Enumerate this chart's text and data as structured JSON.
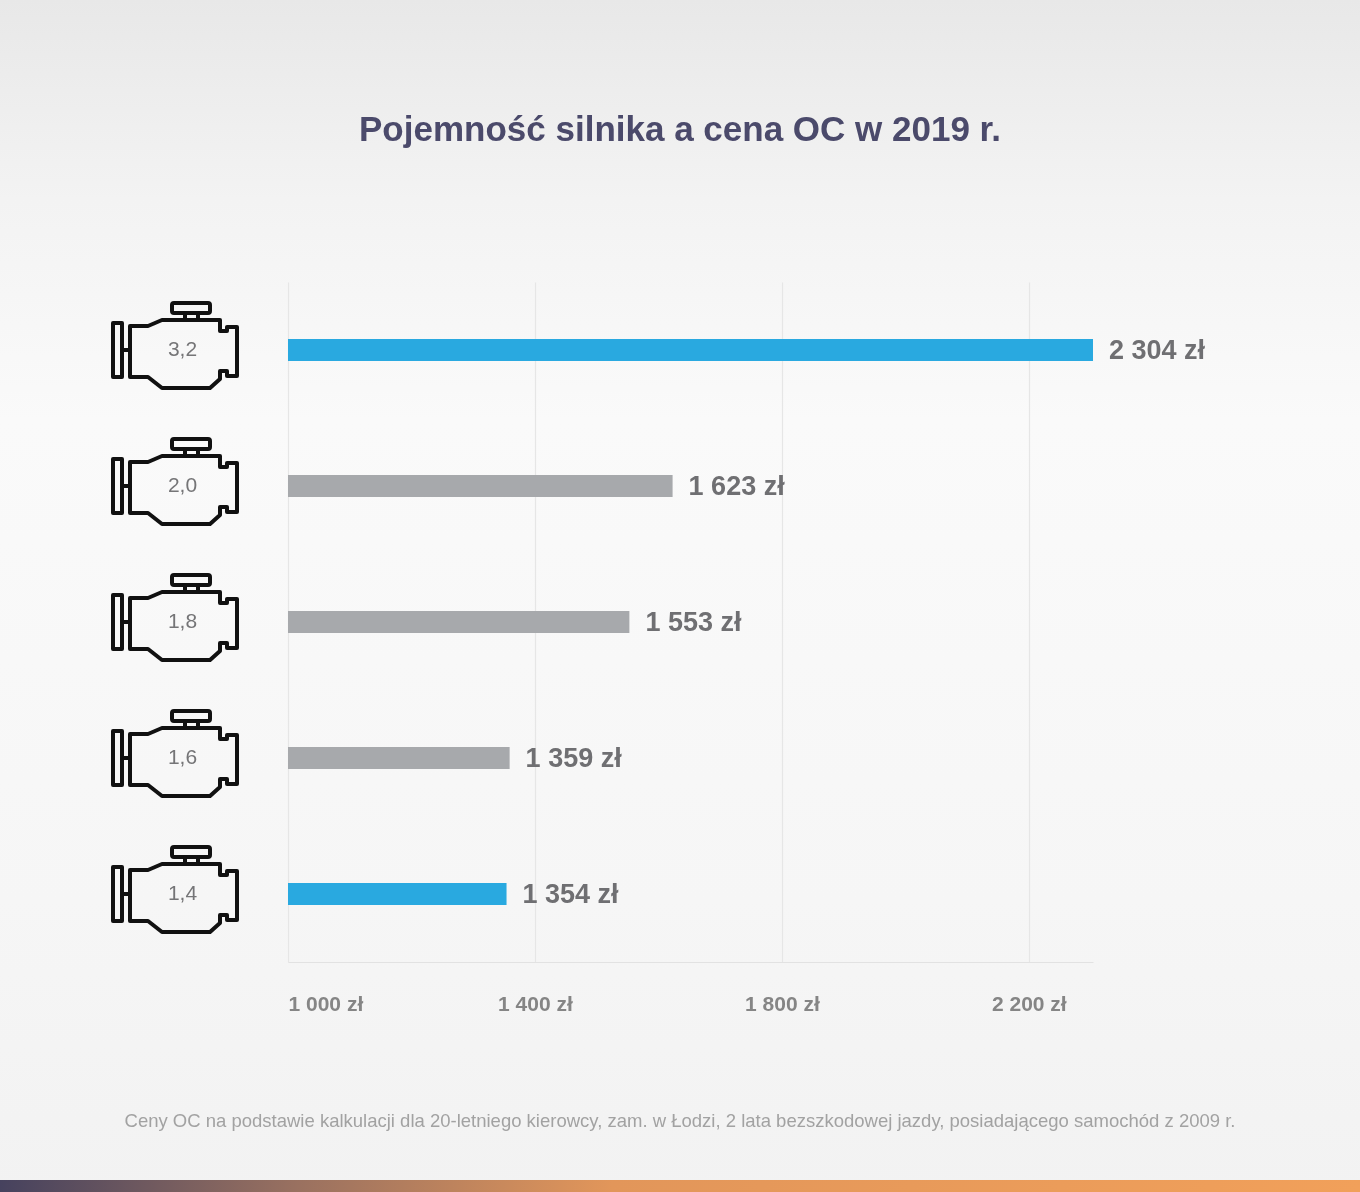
{
  "chart_data": {
    "type": "bar",
    "orientation": "horizontal",
    "title": "Pojemność silnika a cena OC w 2019 r.",
    "categories": [
      "3,2",
      "2,0",
      "1,8",
      "1,6",
      "1,4"
    ],
    "values": [
      2304,
      1623,
      1553,
      1359,
      1354
    ],
    "value_labels": [
      "2 304 zł",
      "1 623 zł",
      "1 553 zł",
      "1 359 zł",
      "1 354 zł"
    ],
    "colors": [
      "#29a9e0",
      "#a7a9ac",
      "#a7a9ac",
      "#a7a9ac",
      "#29a9e0"
    ],
    "xlim": [
      1000,
      2304
    ],
    "xticks": [
      {
        "value": 1000,
        "label": "1 000 zł"
      },
      {
        "value": 1400,
        "label": "1 400 zł"
      },
      {
        "value": 1800,
        "label": "1 800 zł"
      },
      {
        "value": 2200,
        "label": "2 200 zł"
      }
    ],
    "grid": "x",
    "annotations": [
      "Ceny OC na podstawie kalkulacji dla 20-letniego kierowcy, zam. w Łodzi, 2 lata bezszkodowej jazdy, posiadającego samochód z 2009 r."
    ]
  }
}
